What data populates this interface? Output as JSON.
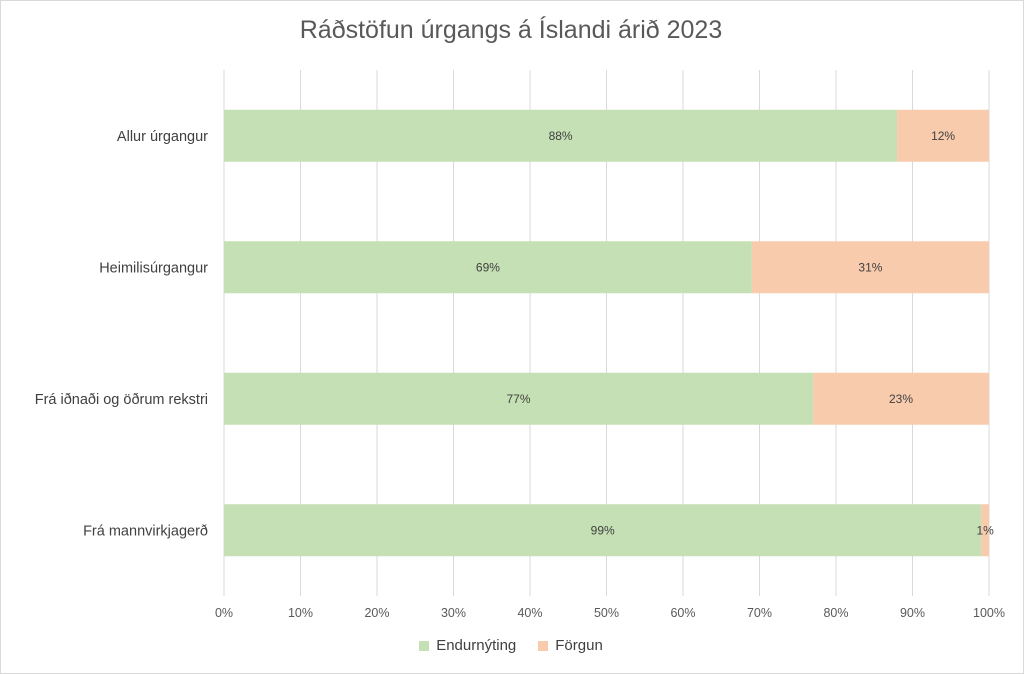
{
  "chart_data": {
    "type": "bar",
    "orientation": "horizontal",
    "stacked": true,
    "title": "Ráðstöfun úrgangs á Íslandi árið 2023",
    "categories": [
      "Allur úrgangur",
      "Heimilisúrgangur",
      "Frá iðnaði og öðrum rekstri",
      "Frá mannvirkjagerð"
    ],
    "series": [
      {
        "name": "Endurnýting",
        "values": [
          88,
          69,
          77,
          99
        ],
        "labels": [
          "88%",
          "69%",
          "77%",
          "99%"
        ],
        "color": "#c5e0b4"
      },
      {
        "name": "Förgun",
        "values": [
          12,
          31,
          23,
          1
        ],
        "labels": [
          "12%",
          "31%",
          "23%",
          "1%"
        ],
        "color": "#f8cbad"
      }
    ],
    "xlim": [
      0,
      100
    ],
    "xticks": [
      "0%",
      "10%",
      "20%",
      "30%",
      "40%",
      "50%",
      "60%",
      "70%",
      "80%",
      "90%",
      "100%"
    ],
    "grid": true,
    "legend_position": "bottom"
  }
}
